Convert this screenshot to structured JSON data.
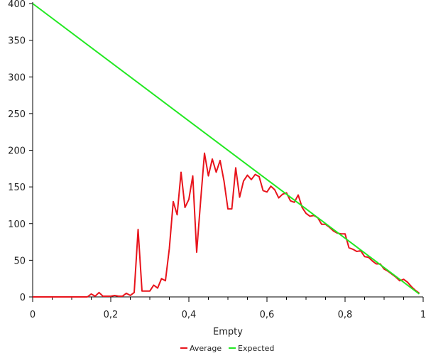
{
  "chart_data": {
    "type": "line",
    "title": "",
    "xlabel": "Empty",
    "ylabel": "",
    "xlim": [
      0,
      1
    ],
    "ylim": [
      0,
      400
    ],
    "x_ticks": [
      {
        "value": 0,
        "label": "0"
      },
      {
        "value": 0.2,
        "label": "0,2"
      },
      {
        "value": 0.4,
        "label": "0,4"
      },
      {
        "value": 0.6,
        "label": "0,6"
      },
      {
        "value": 0.8,
        "label": "0,8"
      },
      {
        "value": 1,
        "label": "1"
      }
    ],
    "y_ticks": [
      {
        "value": 0,
        "label": "0"
      },
      {
        "value": 50,
        "label": "50"
      },
      {
        "value": 100,
        "label": "100"
      },
      {
        "value": 150,
        "label": "150"
      },
      {
        "value": 200,
        "label": "200"
      },
      {
        "value": 250,
        "label": "250"
      },
      {
        "value": 300,
        "label": "300"
      },
      {
        "value": 350,
        "label": "350"
      },
      {
        "value": 400,
        "label": "400"
      }
    ],
    "grid": false,
    "legend_position": "bottom-center",
    "series": [
      {
        "name": "Average",
        "color": "#e8141c",
        "points": [
          [
            0.0,
            0
          ],
          [
            0.01,
            0
          ],
          [
            0.02,
            0
          ],
          [
            0.03,
            0
          ],
          [
            0.04,
            0
          ],
          [
            0.05,
            0
          ],
          [
            0.06,
            0
          ],
          [
            0.07,
            0
          ],
          [
            0.08,
            0
          ],
          [
            0.09,
            0
          ],
          [
            0.1,
            0
          ],
          [
            0.11,
            0
          ],
          [
            0.12,
            0
          ],
          [
            0.13,
            0
          ],
          [
            0.14,
            0
          ],
          [
            0.15,
            4
          ],
          [
            0.16,
            1
          ],
          [
            0.17,
            6
          ],
          [
            0.18,
            1
          ],
          [
            0.19,
            1
          ],
          [
            0.2,
            1
          ],
          [
            0.21,
            2
          ],
          [
            0.22,
            1
          ],
          [
            0.23,
            1
          ],
          [
            0.24,
            5
          ],
          [
            0.25,
            2
          ],
          [
            0.26,
            6
          ],
          [
            0.27,
            92
          ],
          [
            0.28,
            8
          ],
          [
            0.29,
            8
          ],
          [
            0.3,
            8
          ],
          [
            0.31,
            16
          ],
          [
            0.32,
            12
          ],
          [
            0.33,
            25
          ],
          [
            0.34,
            22
          ],
          [
            0.35,
            66
          ],
          [
            0.36,
            130
          ],
          [
            0.37,
            112
          ],
          [
            0.38,
            170
          ],
          [
            0.39,
            122
          ],
          [
            0.4,
            133
          ],
          [
            0.41,
            165
          ],
          [
            0.42,
            61
          ],
          [
            0.43,
            130
          ],
          [
            0.44,
            196
          ],
          [
            0.45,
            165
          ],
          [
            0.46,
            188
          ],
          [
            0.47,
            170
          ],
          [
            0.48,
            186
          ],
          [
            0.49,
            158
          ],
          [
            0.5,
            120
          ],
          [
            0.51,
            120
          ],
          [
            0.52,
            176
          ],
          [
            0.53,
            136
          ],
          [
            0.54,
            158
          ],
          [
            0.55,
            166
          ],
          [
            0.56,
            160
          ],
          [
            0.57,
            167
          ],
          [
            0.58,
            164
          ],
          [
            0.59,
            145
          ],
          [
            0.6,
            143
          ],
          [
            0.61,
            151
          ],
          [
            0.62,
            146
          ],
          [
            0.63,
            135
          ],
          [
            0.64,
            140
          ],
          [
            0.65,
            142
          ],
          [
            0.66,
            131
          ],
          [
            0.67,
            129
          ],
          [
            0.68,
            139
          ],
          [
            0.69,
            122
          ],
          [
            0.7,
            114
          ],
          [
            0.71,
            110
          ],
          [
            0.72,
            111
          ],
          [
            0.73,
            108
          ],
          [
            0.74,
            99
          ],
          [
            0.75,
            99
          ],
          [
            0.76,
            95
          ],
          [
            0.77,
            90
          ],
          [
            0.78,
            87
          ],
          [
            0.79,
            86
          ],
          [
            0.8,
            86
          ],
          [
            0.81,
            67
          ],
          [
            0.82,
            65
          ],
          [
            0.83,
            62
          ],
          [
            0.84,
            63
          ],
          [
            0.85,
            55
          ],
          [
            0.86,
            54
          ],
          [
            0.87,
            49
          ],
          [
            0.88,
            45
          ],
          [
            0.89,
            45
          ],
          [
            0.9,
            38
          ],
          [
            0.91,
            35
          ],
          [
            0.92,
            31
          ],
          [
            0.93,
            27
          ],
          [
            0.94,
            22
          ],
          [
            0.95,
            24
          ],
          [
            0.96,
            20
          ],
          [
            0.97,
            14
          ],
          [
            0.98,
            9
          ],
          [
            0.99,
            5
          ]
        ]
      },
      {
        "name": "Expected",
        "color": "#22e822",
        "points": [
          [
            0,
            400
          ],
          [
            0.99,
            4
          ]
        ]
      }
    ]
  }
}
